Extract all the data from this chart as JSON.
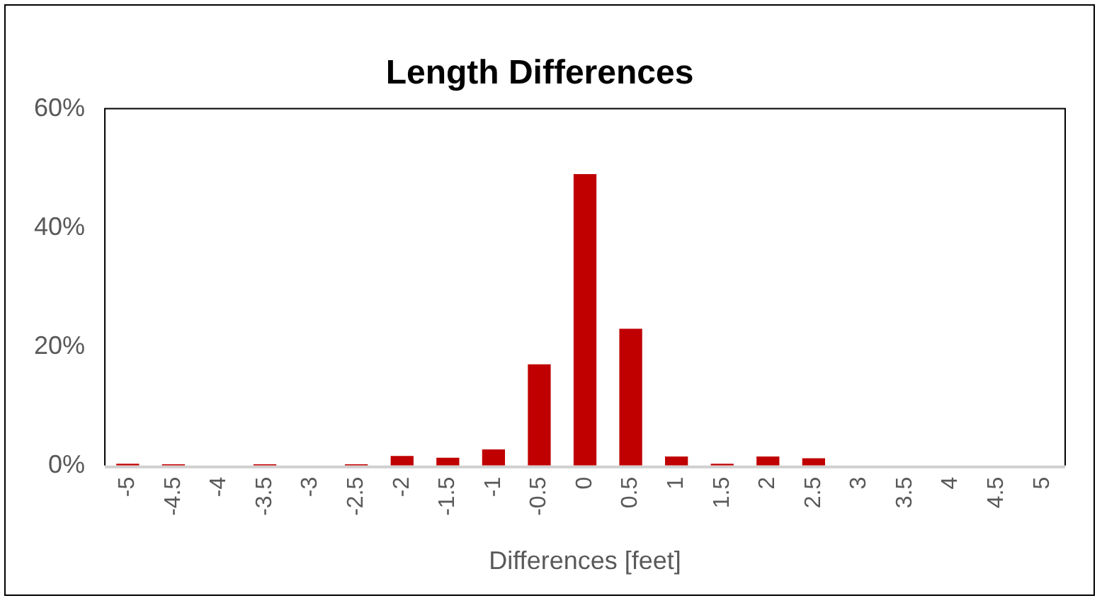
{
  "chart_data": {
    "type": "bar",
    "title": "Length Differences",
    "xlabel": "Differences [feet]",
    "categories": [
      "-5",
      "-4.5",
      "-4",
      "-3.5",
      "-3",
      "-2.5",
      "-2",
      "-1.5",
      "-1",
      "-0.5",
      "0",
      "0.5",
      "1",
      "1.5",
      "2",
      "2.5",
      "3",
      "3.5",
      "4",
      "4.5",
      "5"
    ],
    "values": [
      0.3,
      0.2,
      0,
      0.2,
      0,
      0.2,
      1.6,
      1.3,
      2.7,
      17,
      49,
      23,
      1.5,
      0.3,
      1.5,
      1.2,
      0,
      0,
      0,
      0,
      0
    ],
    "color": "#c00000",
    "ylim": [
      0,
      60
    ],
    "yticks": [
      {
        "value": 0,
        "label": "0%"
      },
      {
        "value": 20,
        "label": "20%"
      },
      {
        "value": 40,
        "label": "40%"
      },
      {
        "value": 60,
        "label": "60%"
      }
    ],
    "grid": false,
    "legend": false
  }
}
